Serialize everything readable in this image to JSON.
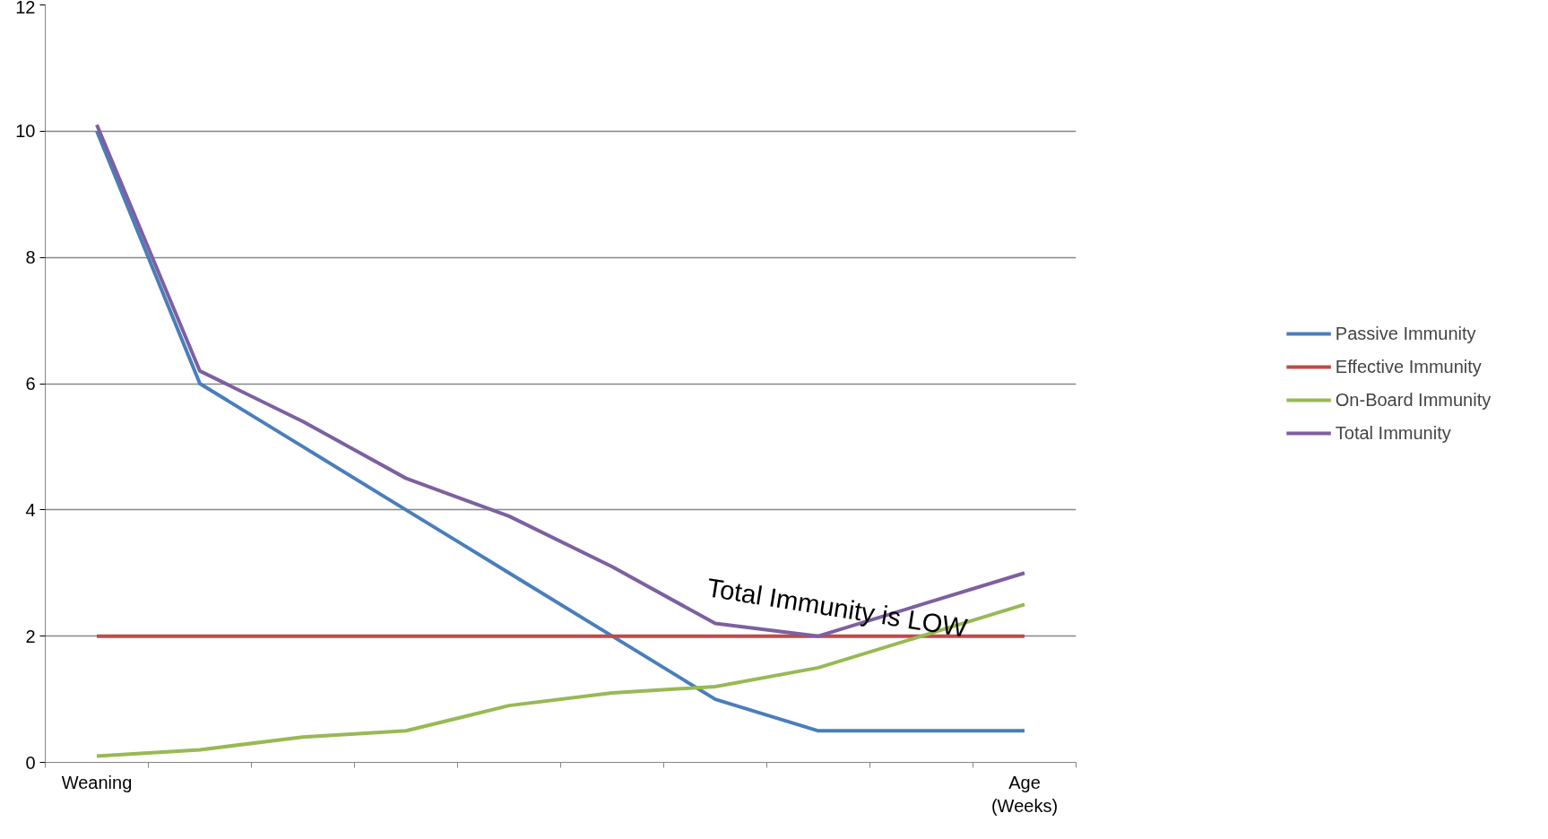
{
  "chart_data": {
    "type": "line",
    "categories": [
      "Weaning",
      null,
      null,
      null,
      null,
      null,
      null,
      null,
      null,
      "Age (Weeks)"
    ],
    "series": [
      {
        "name": "Passive Immunity",
        "color": "#4a7ebb",
        "values": [
          10,
          6,
          5,
          4,
          3,
          2,
          1,
          0.5,
          0.5,
          0.5
        ]
      },
      {
        "name": "Effective Immunity",
        "color": "#be4b48",
        "values": [
          2,
          2,
          2,
          2,
          2,
          2,
          2,
          2,
          2,
          2
        ]
      },
      {
        "name": "On-Board Immunity",
        "color": "#98b954",
        "values": [
          0.1,
          0.2,
          0.4,
          0.5,
          0.9,
          1.1,
          1.2,
          1.5,
          2.0,
          2.5
        ]
      },
      {
        "name": "Total Immunity",
        "color": "#7d60a0",
        "values": [
          10.1,
          6.2,
          5.4,
          4.5,
          3.9,
          3.1,
          2.2,
          2.0,
          2.5,
          3.0
        ]
      }
    ],
    "ylim": [
      0,
      12
    ],
    "yticks": [
      0,
      2,
      4,
      6,
      8,
      10,
      12
    ],
    "grid": "y",
    "legend": "right",
    "marker": "none",
    "line_style": "solid",
    "annotations": [
      "Total Immunity is LOW"
    ]
  }
}
